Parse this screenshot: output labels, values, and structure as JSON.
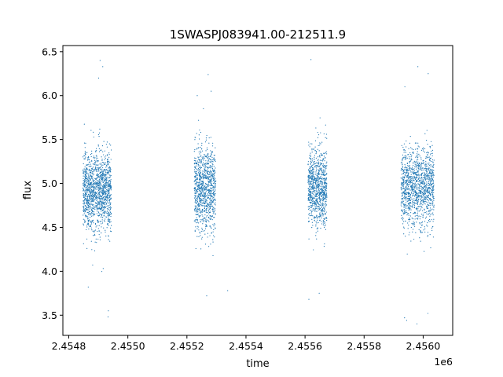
{
  "chart_data": {
    "type": "scatter",
    "title": "1SWASPJ083941.00-212511.9",
    "xlabel": "time",
    "ylabel": "flux",
    "x_offset_label": "1e6",
    "xlim": [
      2454780,
      2456100
    ],
    "ylim": [
      3.27,
      6.57
    ],
    "x_ticks": [
      2454800,
      2455000,
      2455200,
      2455400,
      2455600,
      2455800,
      2456000
    ],
    "x_tick_labels": [
      "2.4548",
      "2.4550",
      "2.4552",
      "2.4554",
      "2.4556",
      "2.4558",
      "2.4560"
    ],
    "y_ticks": [
      3.5,
      4.0,
      4.5,
      5.0,
      5.5,
      6.0,
      6.5
    ],
    "y_tick_labels": [
      "3.5",
      "4.0",
      "4.5",
      "5.0",
      "5.5",
      "6.0",
      "6.5"
    ],
    "grid": false,
    "marker_color": "#1f77b4",
    "series": [
      {
        "clusters": [
          {
            "x_start": 2454848,
            "x_end": 2454944,
            "flux_center": 4.92,
            "flux_spread": 0.22,
            "n_points": 1400
          },
          {
            "x_start": 2455225,
            "x_end": 2455297,
            "flux_center": 4.95,
            "flux_spread": 0.24,
            "n_points": 1000
          },
          {
            "x_start": 2455610,
            "x_end": 2455674,
            "flux_center": 4.95,
            "flux_spread": 0.22,
            "n_points": 900
          },
          {
            "x_start": 2455925,
            "x_end": 2456037,
            "flux_center": 4.95,
            "flux_spread": 0.22,
            "n_points": 1300
          }
        ],
        "outliers": [
          {
            "x": 2454906,
            "y": 6.4
          },
          {
            "x": 2454915,
            "y": 6.33
          },
          {
            "x": 2454901,
            "y": 6.2
          },
          {
            "x": 2454934,
            "y": 3.55
          },
          {
            "x": 2454933,
            "y": 3.48
          },
          {
            "x": 2454866,
            "y": 3.82
          },
          {
            "x": 2455235,
            "y": 6.0
          },
          {
            "x": 2455272,
            "y": 6.24
          },
          {
            "x": 2455282,
            "y": 6.05
          },
          {
            "x": 2455267,
            "y": 3.72
          },
          {
            "x": 2455298,
            "y": 5.03
          },
          {
            "x": 2455338,
            "y": 3.78
          },
          {
            "x": 2455620,
            "y": 6.41
          },
          {
            "x": 2455648,
            "y": 3.75
          },
          {
            "x": 2455613,
            "y": 3.68
          },
          {
            "x": 2455938,
            "y": 6.1
          },
          {
            "x": 2455982,
            "y": 6.33
          },
          {
            "x": 2456017,
            "y": 6.25
          },
          {
            "x": 2455937,
            "y": 3.47
          },
          {
            "x": 2455944,
            "y": 3.44
          },
          {
            "x": 2455979,
            "y": 3.4
          },
          {
            "x": 2456016,
            "y": 3.52
          }
        ]
      }
    ]
  }
}
